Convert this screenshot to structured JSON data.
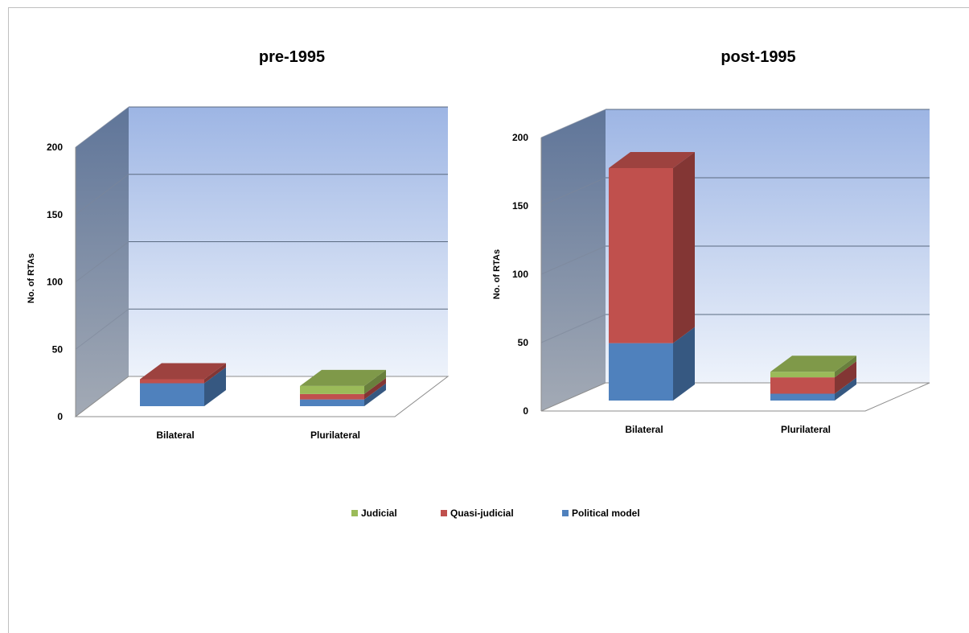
{
  "colors": {
    "Judicial": "#9bbb59",
    "Quasi-judicial": "#c0504d",
    "Political model": "#4f81bd"
  },
  "legend": [
    "Judicial",
    "Quasi-judicial",
    "Political model"
  ],
  "chart_data": [
    {
      "type": "bar",
      "stacked": true,
      "projection": "3d",
      "title": "pre-1995",
      "ylabel": "No. of RTAs",
      "xlabel": "",
      "categories": [
        "Bilateral",
        "Plurilateral"
      ],
      "ylim": [
        0,
        200
      ],
      "yticks": [
        0,
        50,
        100,
        150,
        200
      ],
      "grid": true,
      "legend_position": "bottom",
      "series": [
        {
          "name": "Political model",
          "values": [
            17,
            5
          ]
        },
        {
          "name": "Quasi-judicial",
          "values": [
            3,
            4
          ]
        },
        {
          "name": "Judicial",
          "values": [
            0,
            6
          ]
        }
      ]
    },
    {
      "type": "bar",
      "stacked": true,
      "projection": "3d",
      "title": "post-1995",
      "ylabel": "No. of RTAs",
      "xlabel": "",
      "categories": [
        "Bilateral",
        "Plurilateral"
      ],
      "ylim": [
        0,
        200
      ],
      "yticks": [
        0,
        50,
        100,
        150,
        200
      ],
      "grid": true,
      "legend_position": "bottom",
      "series": [
        {
          "name": "Political model",
          "values": [
            42,
            5
          ]
        },
        {
          "name": "Quasi-judicial",
          "values": [
            128,
            12
          ]
        },
        {
          "name": "Judicial",
          "values": [
            0,
            4
          ]
        }
      ]
    }
  ]
}
